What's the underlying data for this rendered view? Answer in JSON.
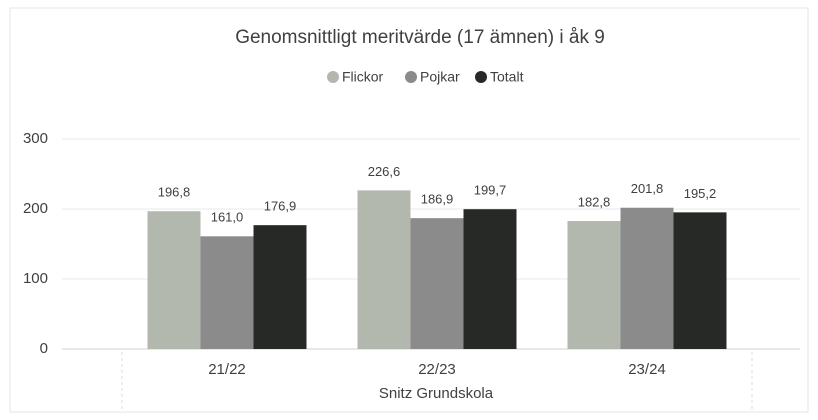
{
  "chart_data": {
    "type": "bar",
    "title": "Genomsnittligt meritvärde (17 ämnen) i åk 9",
    "x_label": "Snitz Grundskola",
    "categories": [
      "21/22",
      "22/23",
      "23/24"
    ],
    "series": [
      {
        "name": "Flickor",
        "color": "#b3b8ae",
        "values": [
          196.8,
          226.6,
          182.8
        ],
        "value_labels": [
          "196,8",
          "226,6",
          "182,8"
        ]
      },
      {
        "name": "Pojkar",
        "color": "#8b8b8b",
        "values": [
          161.0,
          186.9,
          201.8
        ],
        "value_labels": [
          "161,0",
          "186,9",
          "201,8"
        ]
      },
      {
        "name": "Totalt",
        "color": "#272927",
        "values": [
          176.9,
          199.7,
          195.2
        ],
        "value_labels": [
          "176,9",
          "199,7",
          "195,2"
        ]
      }
    ],
    "ylim": [
      0,
      300
    ],
    "yticks": [
      0,
      100,
      200,
      300
    ],
    "grid": true,
    "legend": "top"
  }
}
